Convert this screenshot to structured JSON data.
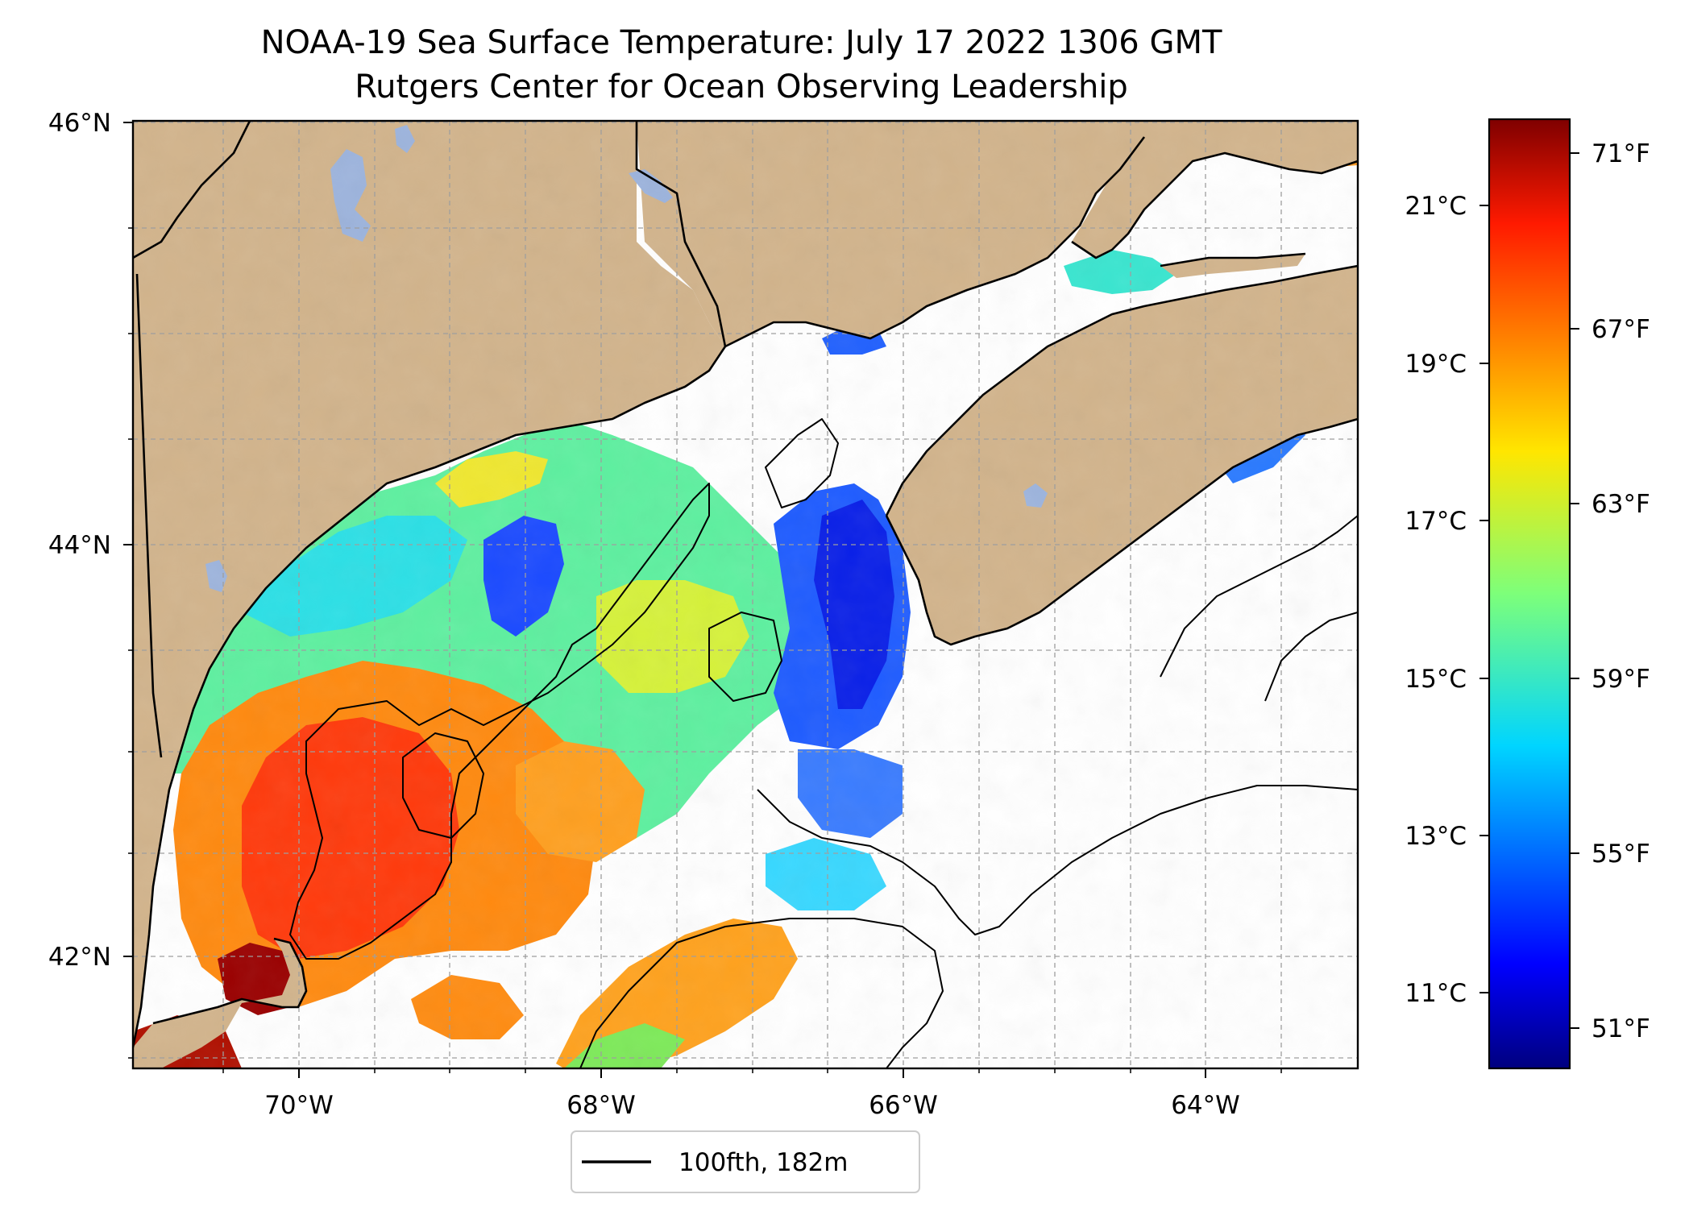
{
  "title": {
    "line1": "NOAA-19 Sea Surface Temperature: July 17 2022 1306 GMT",
    "line2": "Rutgers Center for Ocean Observing Leadership"
  },
  "map": {
    "lat_ticks": [
      "46°N",
      "44°N",
      "42°N"
    ],
    "lon_ticks": [
      "70°W",
      "68°W",
      "66°W",
      "64°W"
    ],
    "lon_range": [
      -71.1,
      -63.0
    ],
    "lat_range": [
      41.5,
      46.0
    ],
    "grid": true,
    "land_color": "#d2b48c",
    "lake_color": "#9db4dd",
    "no_data_color": "#ffffff",
    "legend": {
      "label": "100fth, 182m",
      "placement": "bottom-center"
    }
  },
  "colorbar": {
    "colormap": "jet",
    "celsius_ticks": [
      "21°C",
      "19°C",
      "17°C",
      "15°C",
      "13°C",
      "11°C"
    ],
    "fahrenheit_ticks": [
      "71°F",
      "67°F",
      "63°F",
      "59°F",
      "55°F",
      "51°F"
    ],
    "range_c": [
      10.0,
      22.0
    ]
  }
}
